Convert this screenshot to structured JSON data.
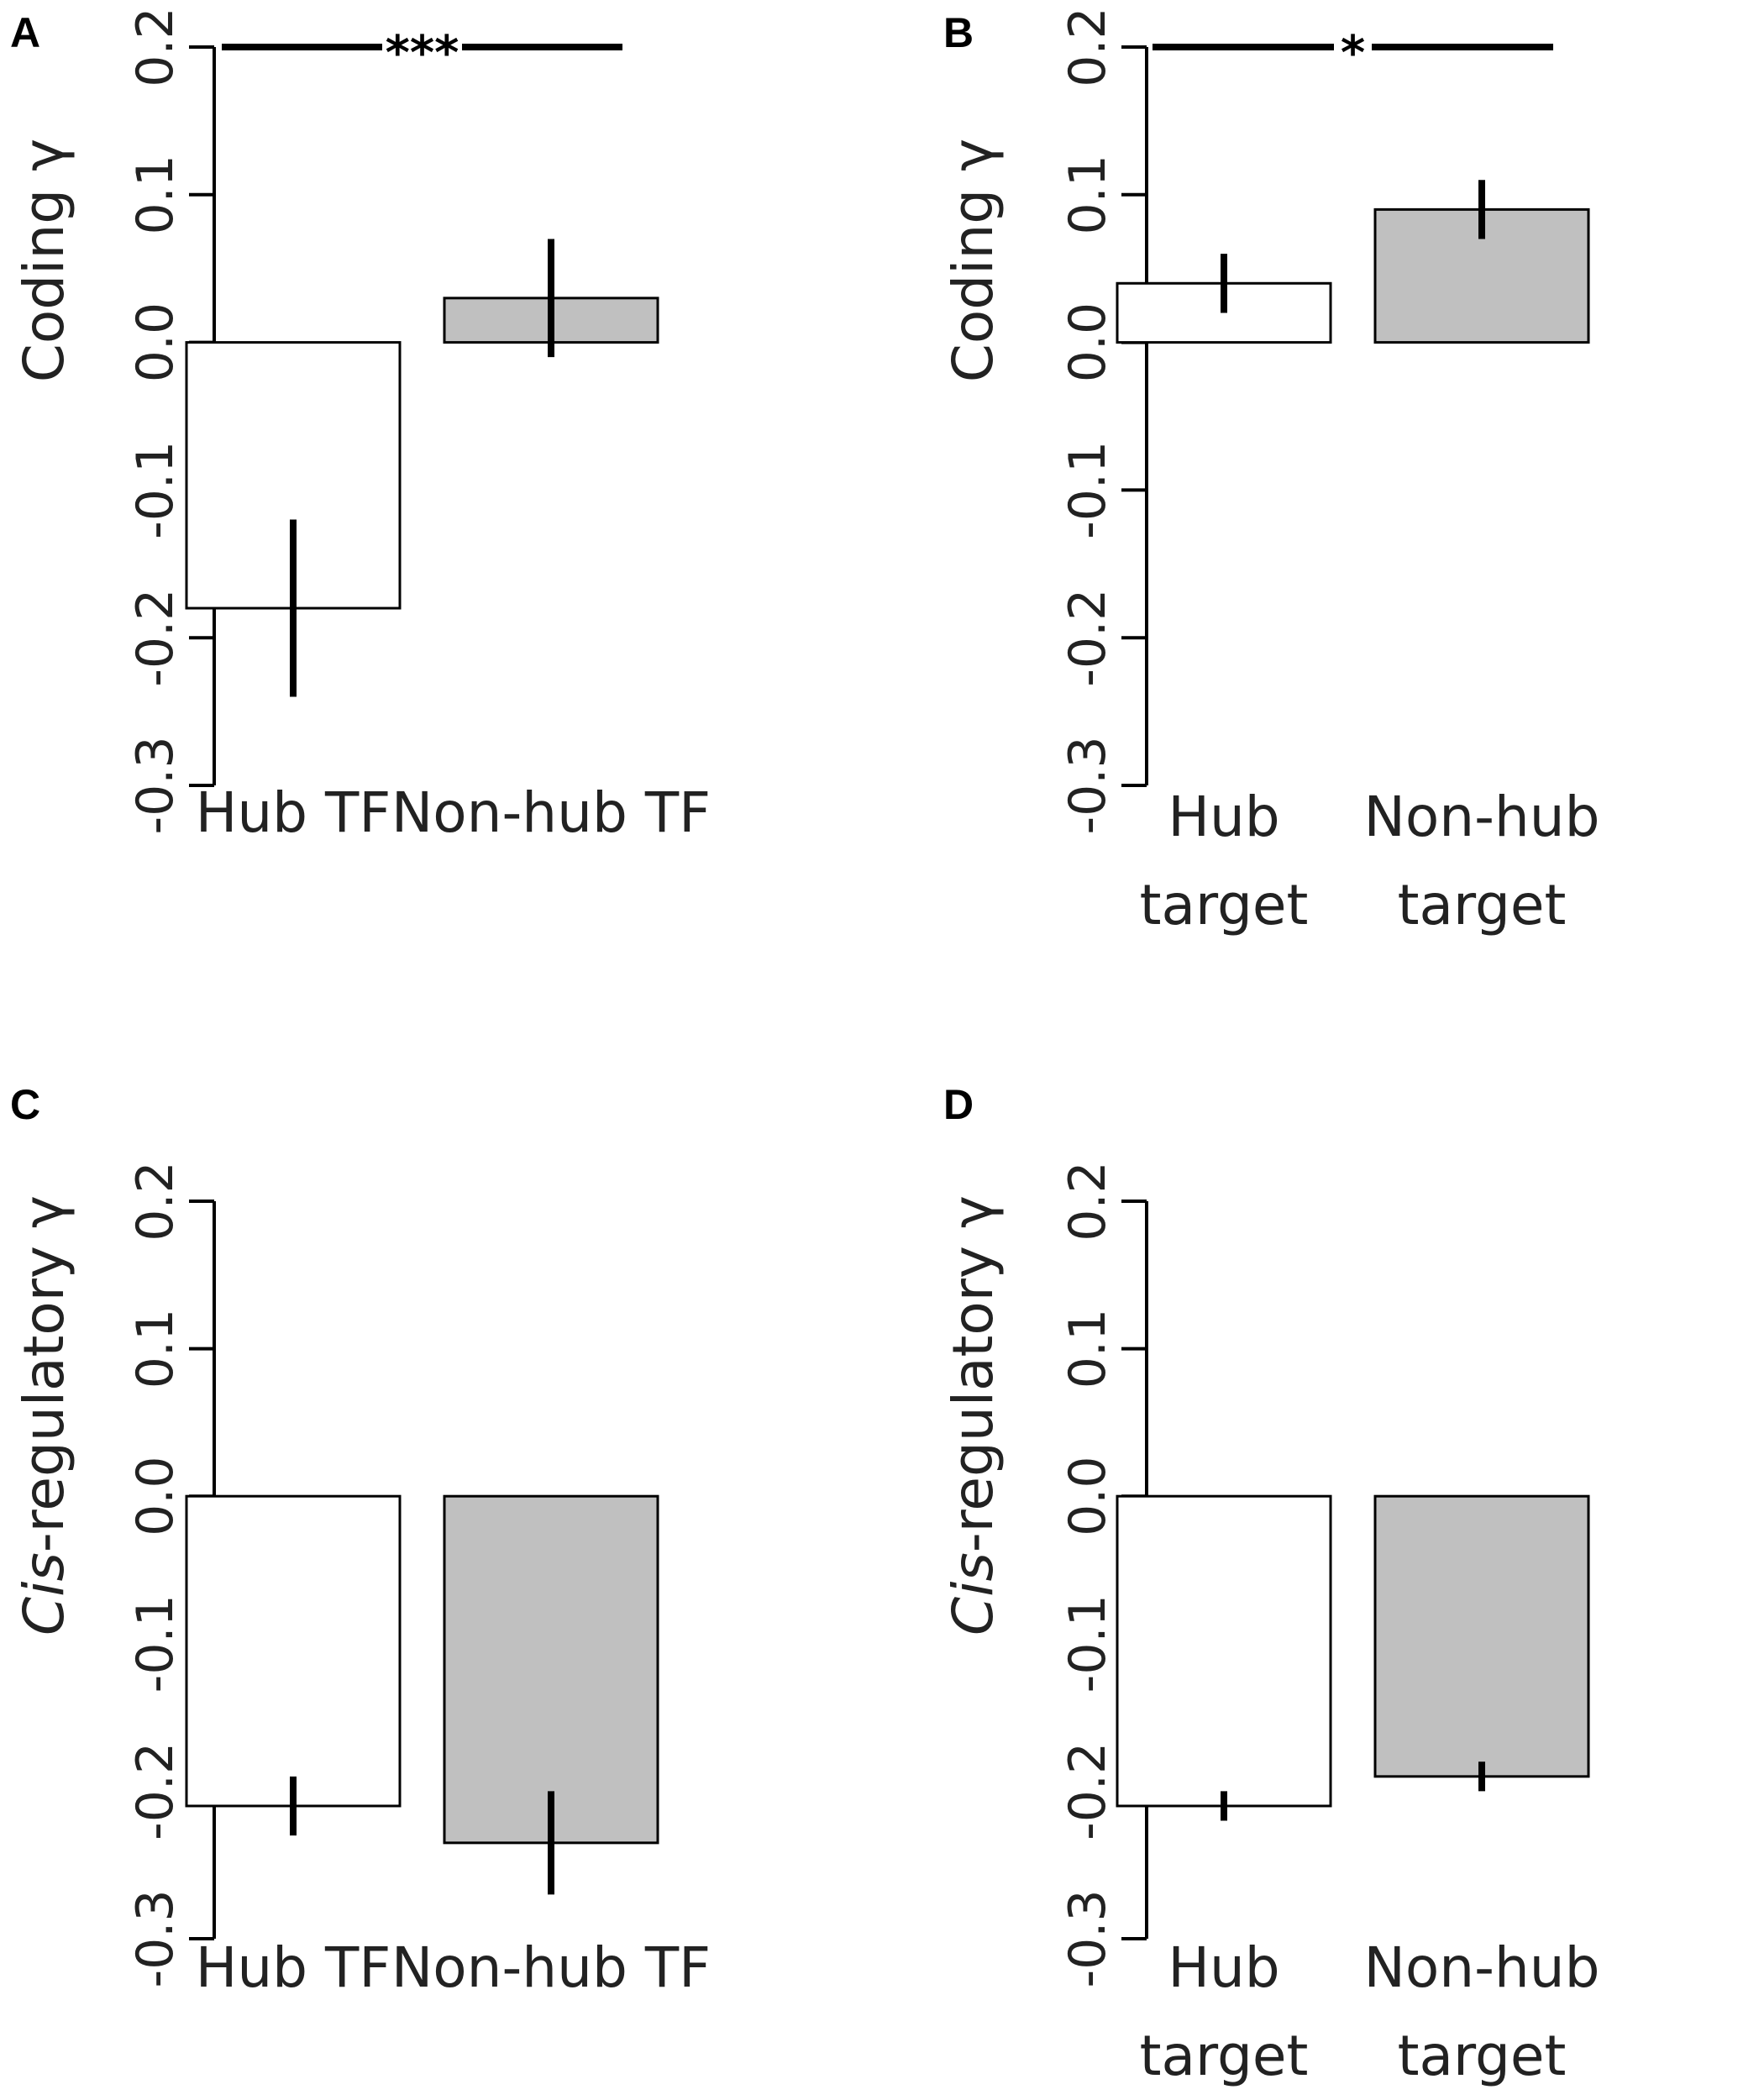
{
  "chart_data": [
    {
      "panel": "A",
      "type": "bar",
      "ylabel": "Coding γ",
      "ylabel_prefix": "",
      "ylabel_main": "Coding γ",
      "categories": [
        [
          "Hub TF"
        ],
        [
          "Non-hub TF"
        ]
      ],
      "values": [
        -0.18,
        0.03
      ],
      "errors": [
        [
          -0.24,
          -0.12
        ],
        [
          -0.01,
          0.07
        ]
      ],
      "fill": [
        "#ffffff",
        "#c0c0c0"
      ],
      "ylim": [
        -0.3,
        0.2
      ],
      "yticks": [
        "-0.3",
        "-0.2",
        "-0.1",
        "0.0",
        "0.1",
        "0.2"
      ],
      "significance": "***"
    },
    {
      "panel": "B",
      "type": "bar",
      "ylabel": "Coding γ",
      "ylabel_prefix": "",
      "ylabel_main": "Coding γ",
      "categories": [
        [
          "Hub",
          "target"
        ],
        [
          "Non-hub",
          "target"
        ]
      ],
      "values": [
        0.04,
        0.09
      ],
      "errors": [
        [
          0.02,
          0.06
        ],
        [
          0.07,
          0.11
        ]
      ],
      "fill": [
        "#ffffff",
        "#c0c0c0"
      ],
      "ylim": [
        -0.3,
        0.2
      ],
      "yticks": [
        "-0.3",
        "-0.2",
        "-0.1",
        "0.0",
        "0.1",
        "0.2"
      ],
      "significance": "*"
    },
    {
      "panel": "C",
      "type": "bar",
      "ylabel": "Cis-regulatory γ",
      "ylabel_prefix": "Cis",
      "ylabel_main": "-regulatory γ",
      "categories": [
        [
          "Hub TF"
        ],
        [
          "Non-hub TF"
        ]
      ],
      "values": [
        -0.21,
        -0.235
      ],
      "errors": [
        [
          -0.23,
          -0.19
        ],
        [
          -0.27,
          -0.2
        ]
      ],
      "fill": [
        "#ffffff",
        "#c0c0c0"
      ],
      "ylim": [
        -0.3,
        0.2
      ],
      "yticks": [
        "-0.3",
        "-0.2",
        "-0.1",
        "0.0",
        "0.1",
        "0.2"
      ],
      "significance": ""
    },
    {
      "panel": "D",
      "type": "bar",
      "ylabel": "Cis-regulatory γ",
      "ylabel_prefix": "Cis",
      "ylabel_main": "-regulatory γ",
      "categories": [
        [
          "Hub",
          "target"
        ],
        [
          "Non-hub",
          "target"
        ]
      ],
      "values": [
        -0.21,
        -0.19
      ],
      "errors": [
        [
          -0.22,
          -0.2
        ],
        [
          -0.2,
          -0.18
        ]
      ],
      "fill": [
        "#ffffff",
        "#c0c0c0"
      ],
      "ylim": [
        -0.3,
        0.2
      ],
      "yticks": [
        "-0.3",
        "-0.2",
        "-0.1",
        "0.0",
        "0.1",
        "0.2"
      ],
      "significance": ""
    }
  ]
}
